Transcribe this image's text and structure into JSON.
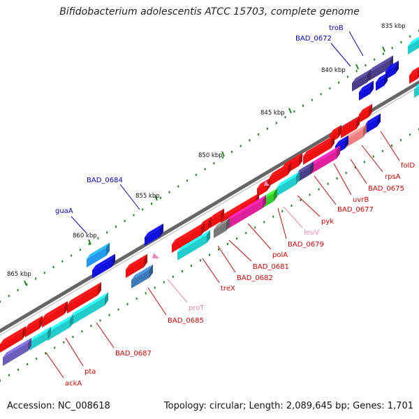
{
  "title": "Bifidobacterium adolescentis ATCC 15703, complete genome",
  "footer": {
    "accession": "Accession: NC_008618",
    "topology": "Topology: circular; Length: 2,089,645 bp; Genes: 1,701"
  },
  "colors": {
    "backbone": "#666666",
    "ticks": "#1a8a1a",
    "label_forward": "#0000cc",
    "label_reverse": "#dd0000",
    "label_rna": "#ee88aa"
  },
  "ticks": [
    {
      "label": "835 kbp"
    },
    {
      "label": "840 kbp"
    },
    {
      "label": "845 kbp"
    },
    {
      "label": "850 kbp"
    },
    {
      "label": "855 kbp"
    },
    {
      "label": "860 kbp"
    },
    {
      "label": "865 kbp"
    }
  ],
  "gene_labels": [
    {
      "name": "troB",
      "strand": "forward"
    },
    {
      "name": "BAD_0672",
      "strand": "forward"
    },
    {
      "name": "BAD_0684",
      "strand": "forward"
    },
    {
      "name": "guaA",
      "strand": "forward"
    },
    {
      "name": "folD",
      "strand": "reverse"
    },
    {
      "name": "rpsA",
      "strand": "reverse"
    },
    {
      "name": "BAD_0675",
      "strand": "reverse"
    },
    {
      "name": "uvrB",
      "strand": "reverse"
    },
    {
      "name": "BAD_0677",
      "strand": "reverse"
    },
    {
      "name": "pyk",
      "strand": "reverse"
    },
    {
      "name": "leuV",
      "strand": "rna"
    },
    {
      "name": "BAD_0679",
      "strand": "reverse"
    },
    {
      "name": "polA",
      "strand": "reverse"
    },
    {
      "name": "BAD_0681",
      "strand": "reverse"
    },
    {
      "name": "BAD_0682",
      "strand": "reverse"
    },
    {
      "name": "treX",
      "strand": "reverse"
    },
    {
      "name": "proT",
      "strand": "rna"
    },
    {
      "name": "BAD_0685",
      "strand": "reverse"
    },
    {
      "name": "BAD_0687",
      "strand": "reverse"
    },
    {
      "name": "pta",
      "strand": "reverse"
    },
    {
      "name": "ackA",
      "strand": "reverse"
    }
  ]
}
